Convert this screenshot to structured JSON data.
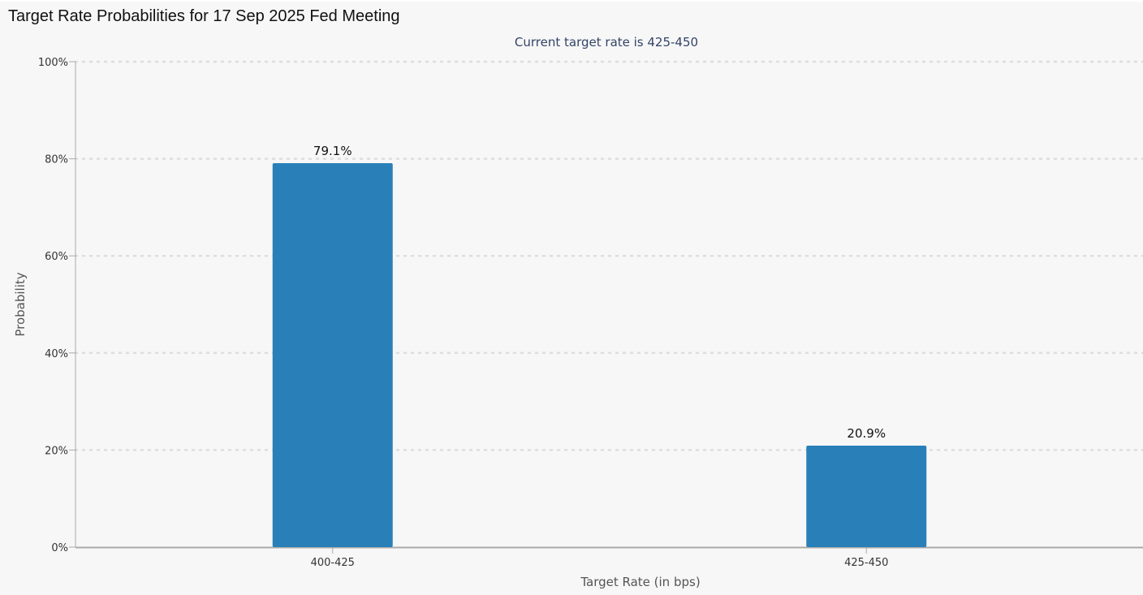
{
  "page": {
    "title": "Target Rate Probabilities for 17 Sep 2025 Fed Meeting"
  },
  "colors": {
    "background": "#f7f7f7",
    "bar": "#2980b9",
    "grid": "#dddddd",
    "axis": "#aaaaaa",
    "subtitle": "#334466",
    "label": "#555555"
  },
  "chart_data": {
    "type": "bar",
    "subtitle": "Current target rate is 425-450",
    "xlabel": "Target Rate (in bps)",
    "ylabel": "Probability",
    "categories": [
      "400-425",
      "425-450"
    ],
    "values": [
      79.1,
      20.9
    ],
    "data_labels": [
      "79.1%",
      "20.9%"
    ],
    "ylim": [
      0,
      100
    ],
    "y_ticks": [
      0,
      20,
      40,
      60,
      80,
      100
    ],
    "y_tick_labels": [
      "0%",
      "20%",
      "40%",
      "60%",
      "80%",
      "100%"
    ],
    "grid": true,
    "grid_style": "dotted",
    "legend": "none"
  }
}
